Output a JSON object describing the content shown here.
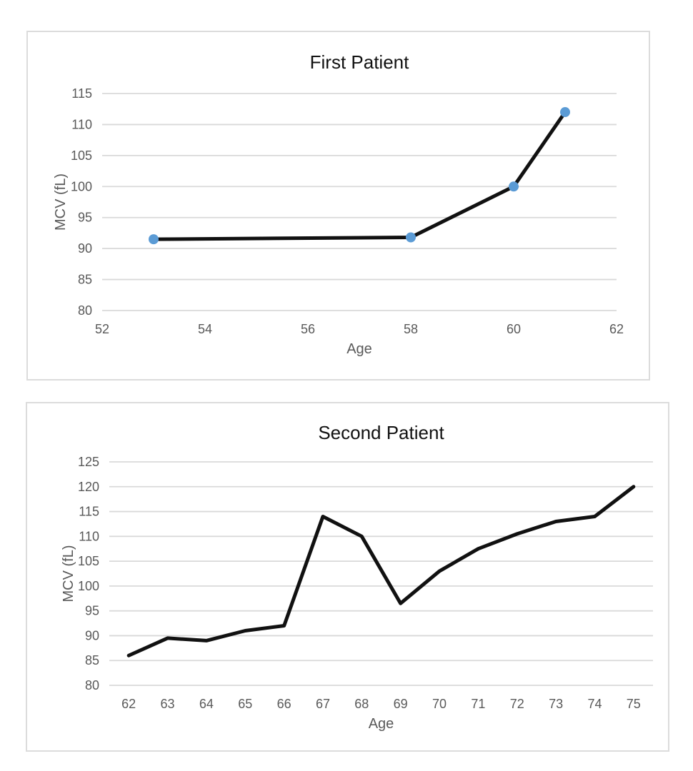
{
  "styles": {
    "grid_color": "#d9d9d9",
    "tick_color": "#595959",
    "axis_label_color": "#595959",
    "title_color": "#111111",
    "card_border_color": "#dcdcdc",
    "background": "#ffffff"
  },
  "chart_data": [
    {
      "type": "line",
      "title": "First Patient",
      "xlabel": "Age",
      "ylabel": "MCV (fL)",
      "series": [
        {
          "name": "MCV",
          "x": [
            53,
            58,
            60,
            61
          ],
          "y": [
            91.5,
            91.8,
            100,
            112
          ]
        }
      ],
      "xlim": [
        52,
        62
      ],
      "ylim": [
        80,
        115
      ],
      "x_ticks": [
        52,
        54,
        56,
        58,
        60,
        62
      ],
      "y_ticks": [
        115,
        110,
        105,
        100,
        95,
        90,
        85,
        80
      ],
      "grid": "horizontal",
      "legend": "none",
      "line_color": "#111111",
      "line_width": 5,
      "marker": {
        "shape": "circle",
        "color": "#5b9bd5",
        "radius": 7,
        "visible": true
      }
    },
    {
      "type": "line",
      "title": "Second Patient",
      "xlabel": "Age",
      "ylabel": "MCV (fL)",
      "series": [
        {
          "name": "MCV",
          "x": [
            62,
            63,
            64,
            65,
            66,
            67,
            68,
            69,
            70,
            71,
            72,
            73,
            74,
            75
          ],
          "y": [
            86,
            89.5,
            89,
            91,
            92,
            114,
            110,
            96.5,
            103,
            107.5,
            110.5,
            113,
            114,
            120
          ]
        }
      ],
      "xlim": [
        61.5,
        75.5
      ],
      "ylim": [
        80,
        125
      ],
      "x_ticks": [
        62,
        63,
        64,
        65,
        66,
        67,
        68,
        69,
        70,
        71,
        72,
        73,
        74,
        75
      ],
      "y_ticks": [
        125,
        120,
        115,
        110,
        105,
        100,
        95,
        90,
        85,
        80
      ],
      "grid": "horizontal",
      "legend": "none",
      "line_color": "#111111",
      "line_width": 5,
      "marker": {
        "visible": false
      }
    }
  ]
}
